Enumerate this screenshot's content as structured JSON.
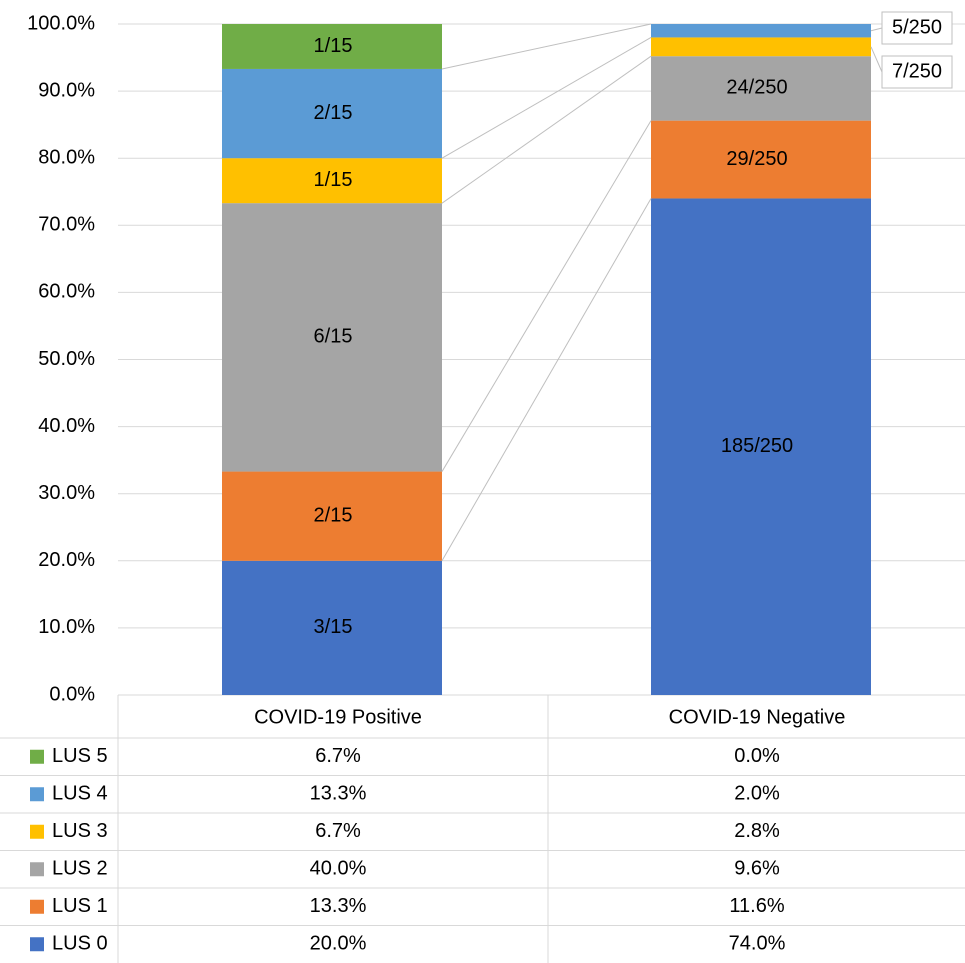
{
  "chart_data": {
    "type": "stacked_bar",
    "categories": [
      "COVID-19 Positive",
      "COVID-19 Negative"
    ],
    "ylim": [
      0,
      100
    ],
    "yticks": [
      {
        "value": 0,
        "label": "0.0%"
      },
      {
        "value": 10,
        "label": "10.0%"
      },
      {
        "value": 20,
        "label": "20.0%"
      },
      {
        "value": 30,
        "label": "30.0%"
      },
      {
        "value": 40,
        "label": "40.0%"
      },
      {
        "value": 50,
        "label": "50.0%"
      },
      {
        "value": 60,
        "label": "60.0%"
      },
      {
        "value": 70,
        "label": "70.0%"
      },
      {
        "value": 80,
        "label": "80.0%"
      },
      {
        "value": 90,
        "label": "90.0%"
      },
      {
        "value": 100,
        "label": "100.0%"
      }
    ],
    "grid": true,
    "series": [
      {
        "name": "LUS 0",
        "color": "#4472c4",
        "values": [
          20.0,
          74.0
        ],
        "value_labels": [
          "3/15",
          "185/250"
        ],
        "table_labels": [
          "20.0%",
          "74.0%"
        ]
      },
      {
        "name": "LUS 1",
        "color": "#ed7d31",
        "values": [
          13.3,
          11.6
        ],
        "value_labels": [
          "2/15",
          "29/250"
        ],
        "table_labels": [
          "13.3%",
          "11.6%"
        ]
      },
      {
        "name": "LUS 2",
        "color": "#a5a5a5",
        "values": [
          40.0,
          9.6
        ],
        "value_labels": [
          "6/15",
          "24/250"
        ],
        "table_labels": [
          "40.0%",
          "9.6%"
        ]
      },
      {
        "name": "LUS 3",
        "color": "#ffc000",
        "values": [
          6.7,
          2.8
        ],
        "value_labels": [
          "1/15",
          "7/250"
        ],
        "table_labels": [
          "6.7%",
          "2.8%"
        ]
      },
      {
        "name": "LUS 4",
        "color": "#5b9bd5",
        "values": [
          13.3,
          2.0
        ],
        "value_labels": [
          "2/15",
          "5/250"
        ],
        "table_labels": [
          "13.3%",
          "2.0%"
        ]
      },
      {
        "name": "LUS 5",
        "color": "#70ad47",
        "values": [
          6.7,
          0.0
        ],
        "value_labels": [
          "1/15",
          null
        ],
        "table_labels": [
          "6.7%",
          "0.0%"
        ]
      }
    ]
  }
}
